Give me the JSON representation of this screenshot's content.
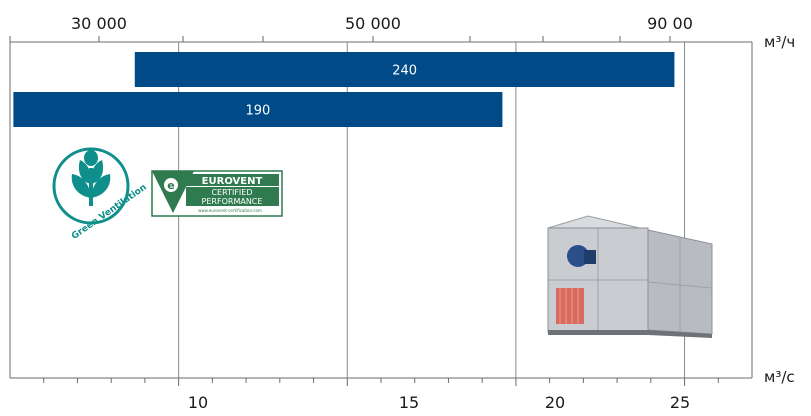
{
  "units": {
    "top": "м³/ч",
    "bottom": "м³/с"
  },
  "chart_data": {
    "type": "bar",
    "orientation": "horizontal",
    "bar_color": "#004a87",
    "top_axis": {
      "label": "м³/ч",
      "tick_labels": [
        "30 000",
        "50 000",
        "90 00"
      ],
      "scale": "log"
    },
    "bottom_axis": {
      "label": "м³/с",
      "range": [
        5,
        27
      ],
      "tick_values": [
        10,
        15,
        20,
        25
      ],
      "tick_labels": [
        "10",
        "15",
        "20",
        "25"
      ]
    },
    "bars": [
      {
        "label": "240",
        "start": 8.7,
        "end": 24.7
      },
      {
        "label": "190",
        "start": 5.1,
        "end": 19.6
      }
    ]
  },
  "logos": {
    "green_ventilation": {
      "text": "Green Ventilation",
      "color": "#0f8f8b"
    },
    "eurovent": {
      "title": "EUROVENT",
      "line1": "CERTIFIED",
      "line2": "PERFORMANCE",
      "url": "www.eurovent-certification.com",
      "color": "#2f7a4f"
    }
  }
}
